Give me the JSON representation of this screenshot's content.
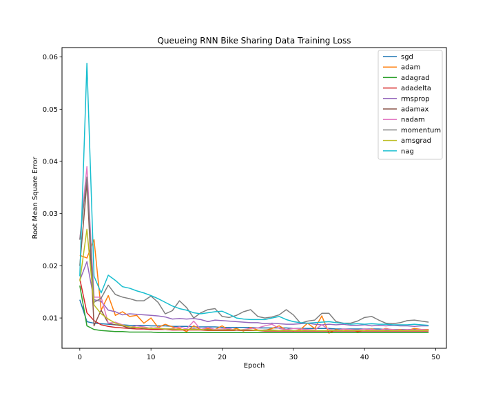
{
  "chart_data": {
    "type": "line",
    "title": "Queueing RNN Bike Sharing Data Training Loss",
    "xlabel": "Epoch",
    "ylabel": "Root Mean Square Error",
    "xlim": [
      -2.5,
      51.5
    ],
    "ylim": [
      0.0042,
      0.0618
    ],
    "xticks": [
      0,
      10,
      20,
      30,
      40,
      50
    ],
    "yticks": [
      0.01,
      0.02,
      0.03,
      0.04,
      0.05,
      0.06
    ],
    "ytick_labels": [
      "0.01",
      "0.02",
      "0.03",
      "0.04",
      "0.05",
      "0.06"
    ],
    "grid": false,
    "legend_position": "top-right",
    "x": [
      0,
      1,
      2,
      3,
      4,
      5,
      6,
      7,
      8,
      9,
      10,
      11,
      12,
      13,
      14,
      15,
      16,
      17,
      18,
      19,
      20,
      21,
      22,
      23,
      24,
      25,
      26,
      27,
      28,
      29,
      30,
      31,
      32,
      33,
      34,
      35,
      36,
      37,
      38,
      39,
      40,
      41,
      42,
      43,
      44,
      45,
      46,
      47,
      48,
      49
    ],
    "series": [
      {
        "name": "sgd",
        "color": "#1f77b4",
        "values": [
          0.0135,
          0.0093,
          0.009,
          0.0089,
          0.0088,
          0.0087,
          0.0087,
          0.0086,
          0.0086,
          0.0086,
          0.0085,
          0.0085,
          0.0085,
          0.0084,
          0.0084,
          0.0084,
          0.0083,
          0.0083,
          0.0083,
          0.0083,
          0.0082,
          0.0082,
          0.0082,
          0.0082,
          0.0082,
          0.0081,
          0.0081,
          0.0081,
          0.0081,
          0.0081,
          0.008,
          0.008,
          0.008,
          0.008,
          0.008,
          0.008,
          0.0079,
          0.0079,
          0.0079,
          0.0079,
          0.0079,
          0.0079,
          0.0079,
          0.0078,
          0.0078,
          0.0078,
          0.0078,
          0.0078,
          0.0078,
          0.0078
        ]
      },
      {
        "name": "adam",
        "color": "#ff7f0e",
        "values": [
          0.022,
          0.0215,
          0.025,
          0.0115,
          0.0143,
          0.0105,
          0.0112,
          0.0103,
          0.0105,
          0.009,
          0.01,
          0.0082,
          0.0088,
          0.0083,
          0.008,
          0.0074,
          0.0085,
          0.0078,
          0.008,
          0.0078,
          0.0085,
          0.0076,
          0.008,
          0.0075,
          0.0082,
          0.0077,
          0.0076,
          0.008,
          0.0085,
          0.0077,
          0.0075,
          0.0078,
          0.009,
          0.008,
          0.0104,
          0.0071,
          0.0078,
          0.0076,
          0.0078,
          0.0074,
          0.0076,
          0.0079,
          0.0076,
          0.008,
          0.0077,
          0.0078,
          0.0076,
          0.008,
          0.0078,
          0.0078
        ]
      },
      {
        "name": "adagrad",
        "color": "#2ca02c",
        "values": [
          0.0162,
          0.0085,
          0.0078,
          0.0076,
          0.0075,
          0.0074,
          0.0074,
          0.0073,
          0.0073,
          0.0073,
          0.0073,
          0.0072,
          0.0072,
          0.0072,
          0.0072,
          0.0072,
          0.0072,
          0.0072,
          0.0072,
          0.0072,
          0.0072,
          0.0072,
          0.0072,
          0.0072,
          0.0072,
          0.0072,
          0.0072,
          0.0072,
          0.0072,
          0.0072,
          0.0072,
          0.0072,
          0.0072,
          0.0072,
          0.0072,
          0.0072,
          0.0072,
          0.0072,
          0.0072,
          0.0072,
          0.0072,
          0.0072,
          0.0072,
          0.0072,
          0.0072,
          0.0072,
          0.0072,
          0.0072,
          0.0072,
          0.0072
        ]
      },
      {
        "name": "adadelta",
        "color": "#d62728",
        "values": [
          0.0175,
          0.011,
          0.0095,
          0.0087,
          0.0084,
          0.0082,
          0.0081,
          0.008,
          0.0079,
          0.0079,
          0.0078,
          0.0078,
          0.0078,
          0.0077,
          0.0077,
          0.0077,
          0.0077,
          0.0077,
          0.0076,
          0.0076,
          0.0076,
          0.0076,
          0.0076,
          0.0076,
          0.0076,
          0.0076,
          0.0075,
          0.0075,
          0.0075,
          0.0075,
          0.0075,
          0.0075,
          0.0075,
          0.0075,
          0.0075,
          0.0075,
          0.0075,
          0.0075,
          0.0075,
          0.0075,
          0.0075,
          0.0075,
          0.0075,
          0.0075,
          0.0075,
          0.0075,
          0.0075,
          0.0075,
          0.0075,
          0.0075
        ]
      },
      {
        "name": "rmsprop",
        "color": "#9467bd",
        "values": [
          0.0172,
          0.0208,
          0.0135,
          0.0132,
          0.0115,
          0.0112,
          0.0106,
          0.0108,
          0.0107,
          0.0106,
          0.0105,
          0.0104,
          0.0102,
          0.0098,
          0.0099,
          0.0098,
          0.0099,
          0.0097,
          0.0093,
          0.0096,
          0.0095,
          0.0094,
          0.0093,
          0.0092,
          0.0091,
          0.0091,
          0.0089,
          0.009,
          0.0089,
          0.0088,
          0.0088,
          0.0089,
          0.009,
          0.0088,
          0.0087,
          0.0088,
          0.0087,
          0.0088,
          0.0086,
          0.0086,
          0.0087,
          0.0085,
          0.0086,
          0.0085,
          0.0086,
          0.0085,
          0.0085,
          0.0084,
          0.0085,
          0.0085
        ]
      },
      {
        "name": "adamax",
        "color": "#8c564b",
        "values": [
          0.02,
          0.036,
          0.0085,
          0.0115,
          0.009,
          0.0087,
          0.0085,
          0.008,
          0.0082,
          0.008,
          0.0081,
          0.008,
          0.0079,
          0.0079,
          0.0078,
          0.0078,
          0.0079,
          0.0078,
          0.0078,
          0.0077,
          0.0077,
          0.0078,
          0.0077,
          0.0077,
          0.0077,
          0.0076,
          0.0077,
          0.0077,
          0.0076,
          0.0077,
          0.0076,
          0.0076,
          0.0077,
          0.0076,
          0.0076,
          0.0076,
          0.0077,
          0.0076,
          0.0076,
          0.0076,
          0.0076,
          0.0076,
          0.0076,
          0.0076,
          0.0076,
          0.0076,
          0.0076,
          0.0076,
          0.0076,
          0.0076
        ]
      },
      {
        "name": "nadam",
        "color": "#e377c2",
        "values": [
          0.025,
          0.039,
          0.014,
          0.014,
          0.009,
          0.0092,
          0.0087,
          0.0082,
          0.0085,
          0.0083,
          0.008,
          0.0082,
          0.0078,
          0.008,
          0.0083,
          0.0079,
          0.0094,
          0.0078,
          0.0082,
          0.0078,
          0.0079,
          0.008,
          0.0076,
          0.0078,
          0.008,
          0.0081,
          0.0085,
          0.0088,
          0.008,
          0.0078,
          0.008,
          0.0079,
          0.0078,
          0.0077,
          0.0087,
          0.0078,
          0.0076,
          0.0079,
          0.0078,
          0.0077,
          0.0079,
          0.0078,
          0.0077,
          0.0079,
          0.0078,
          0.0077,
          0.0078,
          0.0077,
          0.0078,
          0.0077
        ]
      },
      {
        "name": "momentum",
        "color": "#7f7f7f",
        "values": [
          0.025,
          0.037,
          0.013,
          0.0138,
          0.0163,
          0.0145,
          0.014,
          0.0137,
          0.0133,
          0.0133,
          0.0142,
          0.013,
          0.0108,
          0.0114,
          0.0133,
          0.012,
          0.01,
          0.011,
          0.0116,
          0.0118,
          0.0103,
          0.0101,
          0.0105,
          0.0112,
          0.0116,
          0.0103,
          0.01,
          0.0102,
          0.0106,
          0.0116,
          0.0106,
          0.009,
          0.0094,
          0.0096,
          0.0109,
          0.0109,
          0.0093,
          0.009,
          0.009,
          0.0094,
          0.0101,
          0.0103,
          0.0096,
          0.009,
          0.0089,
          0.0091,
          0.0095,
          0.0096,
          0.0094,
          0.0092
        ]
      },
      {
        "name": "amsgrad",
        "color": "#bcbd22",
        "values": [
          0.017,
          0.027,
          0.0125,
          0.0108,
          0.0098,
          0.009,
          0.0086,
          0.0083,
          0.0082,
          0.0081,
          0.008,
          0.008,
          0.0079,
          0.0079,
          0.0078,
          0.0078,
          0.0078,
          0.0078,
          0.0077,
          0.0077,
          0.0077,
          0.0077,
          0.0077,
          0.0077,
          0.0077,
          0.0076,
          0.0076,
          0.0076,
          0.0076,
          0.0076,
          0.0076,
          0.0076,
          0.0076,
          0.0076,
          0.0076,
          0.0076,
          0.0076,
          0.0076,
          0.0076,
          0.0076,
          0.0076,
          0.0076,
          0.0076,
          0.0076,
          0.0076,
          0.0076,
          0.0076,
          0.0076,
          0.0076,
          0.0076
        ]
      },
      {
        "name": "nag",
        "color": "#17becf",
        "values": [
          0.018,
          0.0588,
          0.018,
          0.0148,
          0.0182,
          0.0172,
          0.016,
          0.0157,
          0.0152,
          0.0148,
          0.0143,
          0.0137,
          0.013,
          0.0123,
          0.0118,
          0.0115,
          0.011,
          0.0108,
          0.011,
          0.0112,
          0.0113,
          0.0107,
          0.01,
          0.0098,
          0.0097,
          0.0097,
          0.0097,
          0.01,
          0.0103,
          0.0097,
          0.0093,
          0.0091,
          0.009,
          0.0091,
          0.0092,
          0.0093,
          0.0091,
          0.009,
          0.0088,
          0.0089,
          0.0088,
          0.0089,
          0.0088,
          0.0088,
          0.0087,
          0.0087,
          0.0087,
          0.0088,
          0.0087,
          0.0086
        ]
      }
    ]
  }
}
